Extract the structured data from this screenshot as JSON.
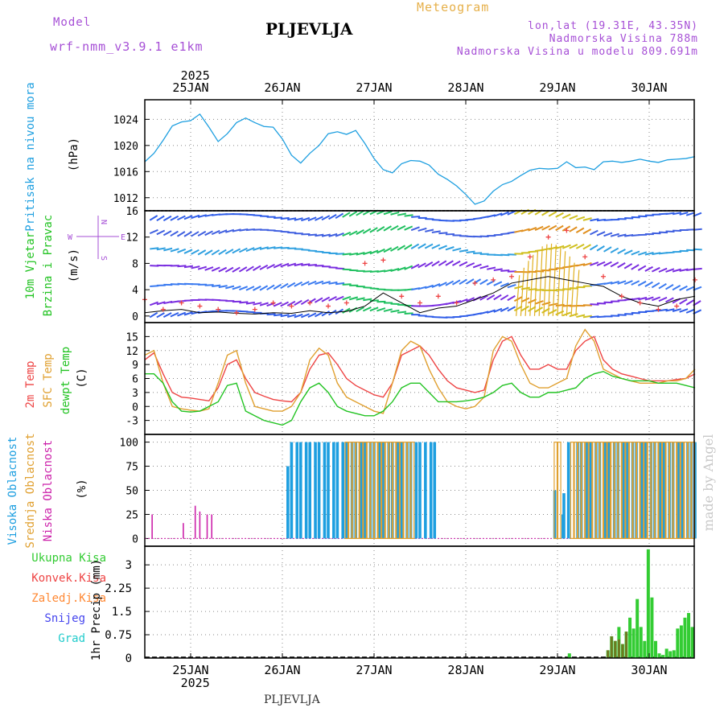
{
  "header": {
    "model_label": "Model",
    "model_name": "wrf-nmm_v3.9.1 e1km",
    "station": "PLJEVLJA",
    "meteogram": "Meteogram",
    "lonlat": "lon,lat (19.31E, 43.35N)",
    "elevation": "Nadmorska Visina 788m",
    "elevation_model": "Nadmorska Visina u modelu 809.691m",
    "footer_station": "PLJEVLJA",
    "watermark": "made by Angel"
  },
  "colors": {
    "pressure": "#1e9fe0",
    "temp2m": "#ee4444",
    "sfc": "#e0a030",
    "dewpt": "#22c322",
    "high_cloud": "#1e9fe0",
    "mid_cloud": "#e0a030",
    "low_cloud": "#cc22aa",
    "total_precip": "#33cc33",
    "conv_precip": "#ee4444",
    "ice": "#ff8833",
    "snow": "#4444ee",
    "hail": "#22cccc",
    "purple": "#a64fd6"
  },
  "chart_data": [
    {
      "type": "line",
      "panel": "pressure",
      "ylabel_colored": "Pritisak na nivou mora",
      "unit": "(hPa)",
      "ylim": [
        1010,
        1027
      ],
      "yticks": [
        1012,
        1016,
        1020,
        1024
      ],
      "x_top": {
        "year": "2025",
        "labels": [
          "25JAN",
          "26JAN",
          "27JAN",
          "28JAN",
          "29JAN",
          "30JAN"
        ]
      },
      "x": [
        -0.5,
        -0.4,
        -0.3,
        -0.2,
        -0.1,
        0,
        0.1,
        0.2,
        0.3,
        0.4,
        0.5,
        0.6,
        0.7,
        0.8,
        0.9,
        1.0,
        1.1,
        1.2,
        1.3,
        1.4,
        1.5,
        1.6,
        1.7,
        1.8,
        1.9,
        2.0,
        2.1,
        2.2,
        2.3,
        2.4,
        2.5,
        2.6,
        2.7,
        2.8,
        2.9,
        3.0,
        3.1,
        3.2,
        3.3,
        3.4,
        3.5,
        3.6,
        3.7,
        3.8,
        3.9,
        4.0,
        4.1,
        4.2,
        4.3,
        4.4,
        4.5,
        4.6,
        4.7,
        4.8,
        4.9,
        5.0,
        5.1,
        5.2,
        5.3,
        5.4,
        5.5
      ],
      "values": [
        1017.5,
        1018.8,
        1020.8,
        1023.0,
        1023.6,
        1023.8,
        1024.8,
        1022.8,
        1020.6,
        1021.8,
        1023.5,
        1024.2,
        1023.5,
        1022.9,
        1022.8,
        1021.0,
        1018.5,
        1017.3,
        1018.8,
        1020.0,
        1021.8,
        1022.1,
        1021.7,
        1022.3,
        1020.3,
        1018.0,
        1016.3,
        1015.8,
        1017.2,
        1017.7,
        1017.6,
        1017.0,
        1015.6,
        1014.8,
        1013.8,
        1012.5,
        1011.0,
        1011.5,
        1013.0,
        1014.0,
        1014.5,
        1015.4,
        1016.2,
        1016.5,
        1016.4,
        1016.5,
        1017.5,
        1016.6,
        1016.7,
        1016.3,
        1017.5,
        1017.6,
        1017.4,
        1017.6,
        1017.9,
        1017.6,
        1017.4,
        1017.8,
        1017.9,
        1018.0,
        1018.3
      ]
    },
    {
      "type": "barbs",
      "panel": "wind",
      "ylabel_colored": "10m Vjetar Brzina i Pravac",
      "unit": "(m/s)",
      "compass": {
        "n": "N",
        "s": "S",
        "w": "W",
        "e": "E"
      },
      "ylim": [
        -1,
        16
      ],
      "yticks": [
        0,
        4,
        8,
        12,
        16
      ],
      "speed_x": [
        -0.5,
        -0.3,
        -0.1,
        0.1,
        0.3,
        0.5,
        0.7,
        0.9,
        1.1,
        1.3,
        1.5,
        1.7,
        1.9,
        2.1,
        2.3,
        2.5,
        2.7,
        2.9,
        3.1,
        3.3,
        3.5,
        3.7,
        3.9,
        4.1,
        4.3,
        4.5,
        4.7,
        4.9,
        5.1,
        5.3,
        5.5
      ],
      "speed_black": [
        0.5,
        0.8,
        1.0,
        0.5,
        0.6,
        0.4,
        0.3,
        0.5,
        0.4,
        0.8,
        0.5,
        0.7,
        1.5,
        3.5,
        2.0,
        0.5,
        1.2,
        1.5,
        2.5,
        3.5,
        5.0,
        5.5,
        6.0,
        5.5,
        5.0,
        4.5,
        3.0,
        2.0,
        1.5,
        2.5,
        3.0
      ],
      "gust_red": [
        2.5,
        1.0,
        2.0,
        1.5,
        1.0,
        0.5,
        1.0,
        2.0,
        1.5,
        2.0,
        1.5,
        2.0,
        8.0,
        8.5,
        3.0,
        2.0,
        3.0,
        2.0,
        5.0,
        5.5,
        6.0,
        9.0,
        12.0,
        13.0,
        9.0,
        6.0,
        3.0,
        2.0,
        1.0,
        1.5,
        5.5
      ]
    },
    {
      "type": "line",
      "panel": "temperature",
      "labels_colored": [
        "2m Temp",
        "SFC Temp",
        "dewpt Temp"
      ],
      "unit": "(C)",
      "ylim": [
        -6,
        18
      ],
      "yticks": [
        -3,
        0,
        3,
        6,
        9,
        12,
        15
      ],
      "x": [
        -0.5,
        -0.4,
        -0.3,
        -0.2,
        -0.1,
        0,
        0.1,
        0.2,
        0.3,
        0.4,
        0.5,
        0.6,
        0.7,
        0.8,
        0.9,
        1.0,
        1.1,
        1.2,
        1.3,
        1.4,
        1.5,
        1.6,
        1.7,
        1.8,
        1.9,
        2.0,
        2.1,
        2.2,
        2.3,
        2.4,
        2.5,
        2.6,
        2.7,
        2.8,
        2.9,
        3.0,
        3.1,
        3.2,
        3.3,
        3.4,
        3.5,
        3.6,
        3.7,
        3.8,
        3.9,
        4.0,
        4.1,
        4.2,
        4.3,
        4.4,
        4.5,
        4.6,
        4.7,
        4.8,
        4.9,
        5.0,
        5.1,
        5.2,
        5.3,
        5.4,
        5.5
      ],
      "series": [
        {
          "name": "2m Temp",
          "values": [
            10,
            11.5,
            7,
            3,
            2,
            1.8,
            1.5,
            1.2,
            4,
            9,
            10,
            6,
            3,
            2.2,
            1.5,
            1.2,
            1,
            3,
            8,
            11,
            11.5,
            9,
            6,
            4.5,
            3.5,
            2.5,
            2,
            5,
            11,
            12,
            13,
            11,
            8,
            5.5,
            4,
            3.5,
            3,
            3.5,
            10,
            14,
            15,
            11,
            8,
            8,
            9,
            8,
            8,
            12,
            14,
            15,
            10,
            8,
            7,
            6.5,
            6,
            5.5,
            5.5,
            5.5,
            5.8,
            6,
            7
          ]
        },
        {
          "name": "SFC Temp",
          "values": [
            11,
            12,
            5,
            0,
            -0.5,
            -0.8,
            -1,
            -0.5,
            5,
            11,
            12,
            5,
            0,
            -0.5,
            -1,
            -1,
            0,
            3,
            10,
            12.5,
            11,
            5,
            2,
            1,
            0,
            -1,
            -1.5,
            5,
            12,
            14,
            13,
            8,
            4,
            1,
            0,
            -0.5,
            0,
            2,
            12,
            15,
            14,
            9,
            5,
            4,
            4,
            5,
            6,
            13,
            16.5,
            14,
            8,
            7,
            6,
            5.5,
            5,
            5,
            5,
            5.5,
            5.5,
            6,
            8
          ]
        },
        {
          "name": "dewpt Temp",
          "values": [
            7,
            7,
            5,
            1,
            -1,
            -1.2,
            -1,
            0,
            1,
            4.5,
            5,
            -1,
            -2,
            -3,
            -3.5,
            -4,
            -3,
            1,
            4,
            5,
            3,
            0,
            -1,
            -1.5,
            -2,
            -2,
            -1,
            1,
            4,
            5,
            5,
            3,
            1,
            1,
            1,
            1.2,
            1.5,
            2,
            3,
            4.5,
            5,
            3,
            2,
            2,
            3,
            3,
            3.5,
            4,
            6,
            7,
            7.5,
            6.5,
            6,
            5.5,
            5.5,
            5.5,
            5,
            5,
            5,
            4.5,
            4
          ]
        }
      ]
    },
    {
      "type": "bar",
      "panel": "clouds",
      "labels_colored": [
        "Visoka Oblacnost",
        "Srednja Oblacnost",
        "Niska Oblacnost"
      ],
      "unit": "(%)",
      "ylim": [
        -8,
        108
      ],
      "yticks": [
        0,
        25,
        50,
        75,
        100
      ],
      "series": [
        {
          "name": "Visoka Oblacnost",
          "x": [
            1.06,
            1.1,
            1.16,
            1.2,
            1.26,
            1.3,
            1.36,
            1.4,
            1.46,
            1.5,
            1.56,
            1.6,
            1.66,
            1.7,
            1.76,
            1.8,
            1.86,
            1.9,
            1.96,
            2.0,
            2.06,
            2.1,
            2.16,
            2.2,
            2.26,
            2.3,
            2.36,
            2.4,
            2.46,
            2.5,
            2.56,
            2.62,
            2.66,
            3.97,
            4.07,
            4.06,
            4.12,
            4.22,
            4.26,
            4.32,
            4.36,
            4.42,
            4.46,
            4.52,
            4.56,
            4.62,
            4.66,
            4.72,
            4.76,
            4.82,
            4.86,
            4.92,
            4.96,
            5.02,
            5.06,
            5.12,
            5.16,
            5.22,
            5.26,
            5.32,
            5.36,
            5.42,
            5.46,
            5.5
          ],
          "values": [
            75,
            100,
            100,
            100,
            100,
            100,
            100,
            100,
            100,
            100,
            100,
            100,
            100,
            100,
            100,
            100,
            100,
            100,
            100,
            100,
            100,
            100,
            100,
            100,
            100,
            100,
            100,
            100,
            100,
            100,
            100,
            100,
            100,
            50,
            47,
            25,
            100,
            100,
            100,
            100,
            100,
            100,
            100,
            100,
            100,
            100,
            100,
            100,
            100,
            100,
            100,
            100,
            100,
            100,
            100,
            100,
            100,
            100,
            100,
            100,
            100,
            100,
            100,
            100
          ]
        },
        {
          "name": "Srednja Oblacnost",
          "x": [
            1.7,
            1.74,
            1.78,
            1.82,
            1.86,
            1.9,
            1.94,
            1.98,
            2.02,
            2.06,
            2.1,
            2.14,
            2.18,
            2.22,
            2.26,
            2.3,
            2.34,
            2.38,
            2.42,
            3.98,
            4.02,
            4.16,
            4.2,
            4.24,
            4.28,
            4.32,
            4.36,
            4.4,
            4.44,
            4.48,
            4.52,
            4.56,
            4.6,
            4.64,
            4.68,
            4.72,
            4.76,
            4.8,
            4.84,
            4.88,
            4.92,
            4.96,
            5.0,
            5.04,
            5.08,
            5.12,
            5.16,
            5.2,
            5.24,
            5.28,
            5.32,
            5.36,
            5.4,
            5.44,
            5.48
          ],
          "values": [
            100,
            100,
            100,
            100,
            100,
            100,
            100,
            100,
            100,
            100,
            100,
            100,
            100,
            100,
            100,
            100,
            100,
            100,
            100,
            100,
            100,
            100,
            100,
            100,
            100,
            100,
            100,
            100,
            100,
            100,
            100,
            100,
            100,
            100,
            100,
            100,
            100,
            100,
            100,
            100,
            100,
            100,
            100,
            100,
            100,
            100,
            100,
            100,
            100,
            100,
            100,
            100,
            100,
            100,
            100
          ]
        },
        {
          "name": "Niska Oblacnost",
          "x": [
            -0.42,
            -0.08,
            0.05,
            0.1,
            0.18,
            0.23
          ],
          "values": [
            25,
            16,
            34,
            28,
            25,
            25
          ]
        }
      ]
    },
    {
      "type": "bar",
      "panel": "precipitation",
      "labels_colored": [
        "Ukupna Kisa",
        "Konvek.Kisa",
        "Zaledj.Kisa",
        "Snijeg",
        "Grad"
      ],
      "unit": "1hr Precip (mm)",
      "ylim": [
        0,
        3.6
      ],
      "yticks": [
        "0",
        "0.75",
        "1.5",
        "2.25",
        "3"
      ],
      "x_bottom": {
        "labels": [
          "25JAN",
          "26JAN",
          "27JAN",
          "28JAN",
          "29JAN",
          "30JAN"
        ],
        "year": "2025"
      },
      "total": {
        "x": [
          4.13,
          4.55,
          4.59,
          4.63,
          4.67,
          4.71,
          4.75,
          4.79,
          4.83,
          4.87,
          4.91,
          4.95,
          4.99,
          5.03,
          5.07,
          5.11,
          5.15,
          5.19,
          5.23,
          5.27,
          5.31,
          5.35,
          5.39,
          5.43,
          5.47
        ],
        "values": [
          0.15,
          0.25,
          0.7,
          0.55,
          1.0,
          0.45,
          0.85,
          1.3,
          0.95,
          1.9,
          1.0,
          0.55,
          3.5,
          1.95,
          0.55,
          0.15,
          0.1,
          0.3,
          0.22,
          0.25,
          0.95,
          1.05,
          1.3,
          1.45,
          1.0
        ]
      },
      "snow": {
        "x": [
          4.55,
          4.59,
          4.63,
          4.67,
          4.71,
          4.75
        ],
        "values": [
          0.25,
          0.7,
          0.55,
          0.6,
          0.45,
          0.85
        ]
      }
    }
  ]
}
